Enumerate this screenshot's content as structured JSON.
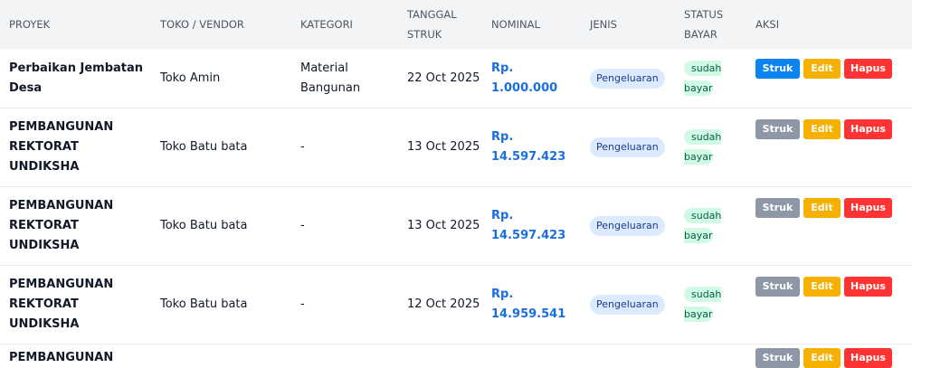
{
  "headers": [
    "Proyek",
    "Toko / Vendor",
    "Kategori",
    "Tanggal Struk",
    "Nominal",
    "Jenis",
    "Status Bayar",
    "Aksi"
  ],
  "buttons": {
    "struk": "Struk",
    "edit": "Edit",
    "hapus": "Hapus"
  },
  "rows": [
    {
      "proyek": "Perbaikan Jembatan Desa",
      "toko": "Toko Amin",
      "kategori": "Material Bangunan",
      "tanggal": "22 Oct 2025",
      "nominal": "Rp. 1.000.000",
      "jenis": "Pengeluaran",
      "status": "sudah bayar",
      "struk_active": true
    },
    {
      "proyek": "PEMBANGUNAN REKTORAT UNDIKSHA",
      "toko": "Toko Batu bata",
      "kategori": "-",
      "tanggal": "13 Oct 2025",
      "nominal": "Rp. 14.597.423",
      "jenis": "Pengeluaran",
      "status": "sudah bayar",
      "struk_active": false
    },
    {
      "proyek": "PEMBANGUNAN REKTORAT UNDIKSHA",
      "toko": "Toko Batu bata",
      "kategori": "-",
      "tanggal": "13 Oct 2025",
      "nominal": "Rp. 14.597.423",
      "jenis": "Pengeluaran",
      "status": "sudah bayar",
      "struk_active": false
    },
    {
      "proyek": "PEMBANGUNAN REKTORAT UNDIKSHA",
      "toko": "Toko Batu bata",
      "kategori": "-",
      "tanggal": "12 Oct 2025",
      "nominal": "Rp. 14.959.541",
      "jenis": "Pengeluaran",
      "status": "sudah bayar",
      "struk_active": false
    },
    {
      "proyek": "PEMBANGUNAN",
      "struk_active": false
    }
  ],
  "colors": {
    "struk_active": "#0a84f0",
    "struk_inactive": "#8e97a6",
    "edit": "#f5b000",
    "hapus": "#ff3333",
    "nominal": "#1a6fe0"
  }
}
